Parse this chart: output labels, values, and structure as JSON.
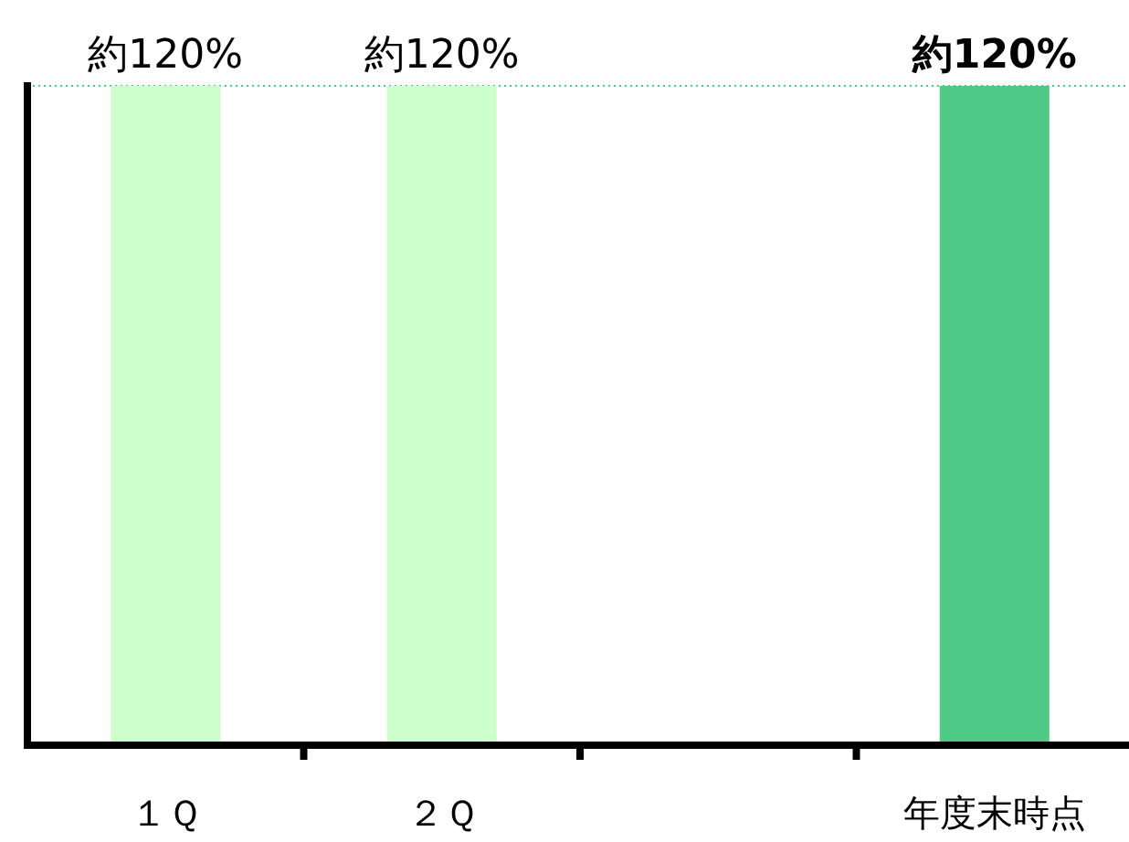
{
  "chart_data": {
    "type": "bar",
    "categories": [
      "１Ｑ",
      "２Ｑ",
      null,
      "年度末時点"
    ],
    "values": [
      120,
      120,
      null,
      120
    ],
    "colors": [
      "#ccffcc",
      "#ccffcc",
      null,
      "#4ec986"
    ],
    "value_labels": [
      "約120%",
      "約120%",
      null,
      "約120%"
    ],
    "ref_lines": [
      {
        "axis": "y",
        "value": 120,
        "color": "#4ec986",
        "line_style": "dotted"
      }
    ]
  }
}
